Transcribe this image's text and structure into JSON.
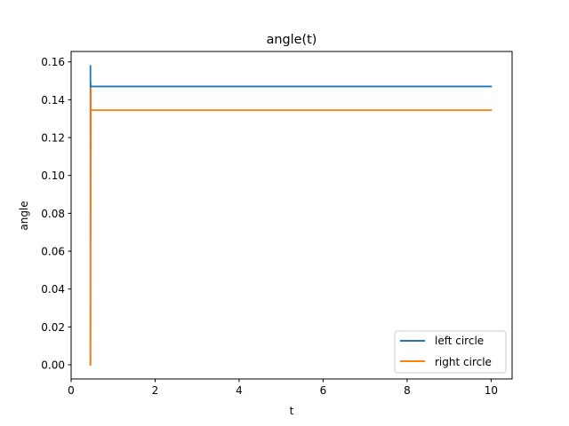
{
  "chart_data": {
    "type": "line",
    "title": "angle(t)",
    "xlabel": "t",
    "ylabel": "angle",
    "xlim": [
      0,
      10.5
    ],
    "ylim": [
      -0.0075,
      0.1655
    ],
    "xticks": [
      0,
      2,
      4,
      6,
      8,
      10
    ],
    "xtick_labels": [
      "0",
      "2",
      "4",
      "6",
      "8",
      "10"
    ],
    "yticks": [
      0.0,
      0.02,
      0.04,
      0.06,
      0.08,
      0.1,
      0.12,
      0.14,
      0.16
    ],
    "ytick_labels": [
      "0.00",
      "0.02",
      "0.04",
      "0.06",
      "0.08",
      "0.10",
      "0.12",
      "0.14",
      "0.16"
    ],
    "grid": false,
    "legend_position": "lower-right",
    "series": [
      {
        "name": "left circle",
        "color": "#1f77b4",
        "x": [
          0.46,
          0.46,
          0.46,
          0.46,
          0.46,
          0.47,
          10.0
        ],
        "y": [
          0.0,
          0.158,
          0.155,
          0.158,
          0.15,
          0.147,
          0.147
        ]
      },
      {
        "name": "right circle",
        "color": "#ff7f0e",
        "x": [
          0.46,
          0.47,
          0.47,
          10.0
        ],
        "y": [
          0.0,
          0.146,
          0.1345,
          0.1345
        ]
      }
    ]
  }
}
